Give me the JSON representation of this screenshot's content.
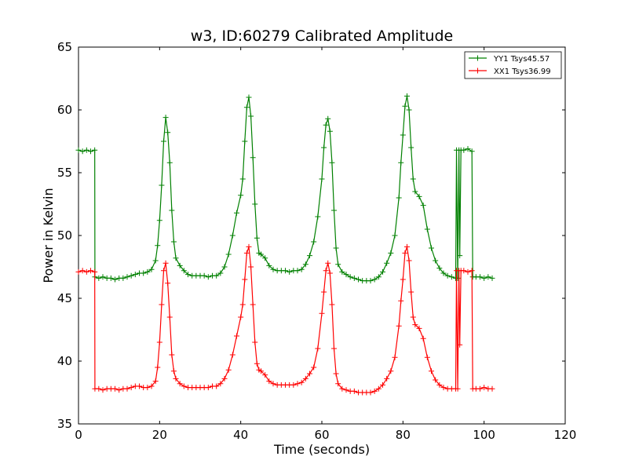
{
  "chart_data": {
    "type": "line",
    "title": "w3, ID:60279 Calibrated Amplitude",
    "xlabel": "Time (seconds)",
    "ylabel": "Power in Kelvin",
    "xlim": [
      0,
      120
    ],
    "ylim": [
      35,
      65
    ],
    "xticks": [
      0,
      20,
      40,
      60,
      80,
      100,
      120
    ],
    "yticks": [
      35,
      40,
      45,
      50,
      55,
      60,
      65
    ],
    "grid": false,
    "legend_position": "top-right",
    "marker": "+",
    "series": [
      {
        "name": "YY1 Tsys45.57",
        "color": "#008000",
        "points": [
          [
            0.0,
            56.8
          ],
          [
            1.0,
            56.7
          ],
          [
            2.0,
            56.8
          ],
          [
            3.0,
            56.7
          ],
          [
            4.0,
            56.8
          ],
          [
            4.05,
            46.7
          ],
          [
            5,
            46.6
          ],
          [
            6,
            46.7
          ],
          [
            7,
            46.6
          ],
          [
            8,
            46.6
          ],
          [
            9,
            46.5
          ],
          [
            10,
            46.6
          ],
          [
            11,
            46.6
          ],
          [
            12,
            46.7
          ],
          [
            13,
            46.8
          ],
          [
            14,
            46.9
          ],
          [
            15,
            47.0
          ],
          [
            16,
            47.0
          ],
          [
            17,
            47.1
          ],
          [
            18,
            47.3
          ],
          [
            19,
            48.0
          ],
          [
            19.5,
            49.2
          ],
          [
            20,
            51.2
          ],
          [
            20.5,
            54.0
          ],
          [
            21,
            57.5
          ],
          [
            21.5,
            59.4
          ],
          [
            22,
            58.2
          ],
          [
            22.5,
            55.8
          ],
          [
            23,
            52.0
          ],
          [
            23.5,
            49.5
          ],
          [
            24,
            48.2
          ],
          [
            25,
            47.6
          ],
          [
            26,
            47.2
          ],
          [
            27,
            46.9
          ],
          [
            28,
            46.8
          ],
          [
            29,
            46.8
          ],
          [
            30,
            46.8
          ],
          [
            31,
            46.8
          ],
          [
            32,
            46.7
          ],
          [
            33,
            46.8
          ],
          [
            34,
            46.8
          ],
          [
            35,
            47.0
          ],
          [
            36,
            47.5
          ],
          [
            37,
            48.5
          ],
          [
            38,
            50.0
          ],
          [
            39,
            51.8
          ],
          [
            40,
            53.2
          ],
          [
            40.5,
            54.5
          ],
          [
            41,
            57.5
          ],
          [
            41.5,
            60.2
          ],
          [
            42,
            61.0
          ],
          [
            42.5,
            59.5
          ],
          [
            43,
            56.2
          ],
          [
            43.5,
            52.5
          ],
          [
            44,
            49.8
          ],
          [
            44.5,
            48.6
          ],
          [
            45,
            48.5
          ],
          [
            46,
            48.2
          ],
          [
            47,
            47.6
          ],
          [
            48,
            47.3
          ],
          [
            49,
            47.2
          ],
          [
            50,
            47.2
          ],
          [
            51,
            47.2
          ],
          [
            52,
            47.1
          ],
          [
            53,
            47.2
          ],
          [
            54,
            47.2
          ],
          [
            55,
            47.3
          ],
          [
            56,
            47.7
          ],
          [
            57,
            48.4
          ],
          [
            58,
            49.5
          ],
          [
            59,
            51.5
          ],
          [
            60,
            54.5
          ],
          [
            60.5,
            57.0
          ],
          [
            61,
            58.8
          ],
          [
            61.5,
            59.3
          ],
          [
            62,
            58.3
          ],
          [
            62.5,
            55.8
          ],
          [
            63,
            52.0
          ],
          [
            63.5,
            49.0
          ],
          [
            64,
            47.7
          ],
          [
            65,
            47.1
          ],
          [
            66,
            46.9
          ],
          [
            67,
            46.7
          ],
          [
            68,
            46.6
          ],
          [
            69,
            46.5
          ],
          [
            70,
            46.4
          ],
          [
            71,
            46.4
          ],
          [
            72,
            46.4
          ],
          [
            73,
            46.5
          ],
          [
            74,
            46.7
          ],
          [
            75,
            47.1
          ],
          [
            76,
            47.8
          ],
          [
            77,
            48.6
          ],
          [
            78,
            50.0
          ],
          [
            79,
            53.0
          ],
          [
            79.5,
            55.8
          ],
          [
            80,
            58.0
          ],
          [
            80.5,
            60.3
          ],
          [
            81,
            61.1
          ],
          [
            81.5,
            60.0
          ],
          [
            82,
            57.0
          ],
          [
            82.5,
            54.5
          ],
          [
            83,
            53.5
          ],
          [
            84,
            53.1
          ],
          [
            85,
            52.4
          ],
          [
            86,
            50.5
          ],
          [
            87,
            49.0
          ],
          [
            88,
            48.0
          ],
          [
            89,
            47.4
          ],
          [
            90,
            47.0
          ],
          [
            91,
            46.8
          ],
          [
            92,
            46.7
          ],
          [
            93,
            46.6
          ],
          [
            93.2,
            56.8
          ],
          [
            93.5,
            46.6
          ],
          [
            93.8,
            56.8
          ],
          [
            94,
            48.4
          ],
          [
            94.3,
            56.8
          ],
          [
            95,
            56.8
          ],
          [
            96,
            56.9
          ],
          [
            97,
            56.7
          ],
          [
            97.2,
            46.7
          ],
          [
            98,
            46.7
          ],
          [
            99,
            46.7
          ],
          [
            100,
            46.6
          ],
          [
            101,
            46.7
          ],
          [
            102,
            46.6
          ]
        ]
      },
      {
        "name": "XX1 Tsys36.99",
        "color": "#ff0000",
        "points": [
          [
            0.0,
            47.1
          ],
          [
            1.0,
            47.2
          ],
          [
            2.0,
            47.1
          ],
          [
            3.0,
            47.2
          ],
          [
            4.0,
            47.1
          ],
          [
            4.05,
            37.8
          ],
          [
            5,
            37.8
          ],
          [
            6,
            37.7
          ],
          [
            7,
            37.8
          ],
          [
            8,
            37.8
          ],
          [
            9,
            37.8
          ],
          [
            10,
            37.7
          ],
          [
            11,
            37.8
          ],
          [
            12,
            37.8
          ],
          [
            13,
            37.9
          ],
          [
            14,
            38.0
          ],
          [
            15,
            38.0
          ],
          [
            16,
            37.9
          ],
          [
            17,
            37.9
          ],
          [
            18,
            38.0
          ],
          [
            19,
            38.4
          ],
          [
            19.5,
            39.5
          ],
          [
            20,
            41.5
          ],
          [
            20.5,
            44.5
          ],
          [
            21,
            47.2
          ],
          [
            21.5,
            47.8
          ],
          [
            22,
            46.2
          ],
          [
            22.5,
            43.5
          ],
          [
            23,
            40.5
          ],
          [
            23.5,
            39.2
          ],
          [
            24,
            38.6
          ],
          [
            25,
            38.2
          ],
          [
            26,
            38.0
          ],
          [
            27,
            37.9
          ],
          [
            28,
            37.9
          ],
          [
            29,
            37.9
          ],
          [
            30,
            37.9
          ],
          [
            31,
            37.9
          ],
          [
            32,
            37.9
          ],
          [
            33,
            38.0
          ],
          [
            34,
            38.0
          ],
          [
            35,
            38.2
          ],
          [
            36,
            38.6
          ],
          [
            37,
            39.3
          ],
          [
            38,
            40.5
          ],
          [
            39,
            42.0
          ],
          [
            40,
            43.5
          ],
          [
            40.5,
            44.5
          ],
          [
            41,
            46.5
          ],
          [
            41.5,
            48.6
          ],
          [
            42,
            49.1
          ],
          [
            42.5,
            47.5
          ],
          [
            43,
            44.5
          ],
          [
            43.5,
            41.5
          ],
          [
            44,
            39.8
          ],
          [
            44.5,
            39.3
          ],
          [
            45,
            39.2
          ],
          [
            46,
            38.9
          ],
          [
            47,
            38.4
          ],
          [
            48,
            38.2
          ],
          [
            49,
            38.1
          ],
          [
            50,
            38.1
          ],
          [
            51,
            38.1
          ],
          [
            52,
            38.1
          ],
          [
            53,
            38.1
          ],
          [
            54,
            38.2
          ],
          [
            55,
            38.3
          ],
          [
            56,
            38.6
          ],
          [
            57,
            39.0
          ],
          [
            58,
            39.5
          ],
          [
            59,
            41.0
          ],
          [
            60,
            43.8
          ],
          [
            60.5,
            45.5
          ],
          [
            61,
            47.2
          ],
          [
            61.5,
            47.8
          ],
          [
            62,
            47.0
          ],
          [
            62.5,
            44.5
          ],
          [
            63,
            41.0
          ],
          [
            63.5,
            39.0
          ],
          [
            64,
            38.2
          ],
          [
            65,
            37.8
          ],
          [
            66,
            37.7
          ],
          [
            67,
            37.6
          ],
          [
            68,
            37.6
          ],
          [
            69,
            37.5
          ],
          [
            70,
            37.5
          ],
          [
            71,
            37.5
          ],
          [
            72,
            37.5
          ],
          [
            73,
            37.6
          ],
          [
            74,
            37.8
          ],
          [
            75,
            38.1
          ],
          [
            76,
            38.6
          ],
          [
            77,
            39.2
          ],
          [
            78,
            40.3
          ],
          [
            79,
            42.8
          ],
          [
            79.5,
            44.8
          ],
          [
            80,
            46.5
          ],
          [
            80.5,
            48.6
          ],
          [
            81,
            49.1
          ],
          [
            81.5,
            48.0
          ],
          [
            82,
            45.5
          ],
          [
            82.5,
            43.5
          ],
          [
            83,
            42.9
          ],
          [
            84,
            42.6
          ],
          [
            85,
            41.8
          ],
          [
            86,
            40.3
          ],
          [
            87,
            39.2
          ],
          [
            88,
            38.5
          ],
          [
            89,
            38.1
          ],
          [
            90,
            37.9
          ],
          [
            91,
            37.8
          ],
          [
            92,
            37.8
          ],
          [
            93,
            37.8
          ],
          [
            93.2,
            47.2
          ],
          [
            93.5,
            37.8
          ],
          [
            93.8,
            47.2
          ],
          [
            94,
            41.3
          ],
          [
            94.3,
            47.2
          ],
          [
            95,
            47.2
          ],
          [
            96,
            47.1
          ],
          [
            97,
            47.2
          ],
          [
            97.2,
            37.8
          ],
          [
            98,
            37.8
          ],
          [
            99,
            37.8
          ],
          [
            100,
            37.9
          ],
          [
            101,
            37.8
          ],
          [
            102,
            37.8
          ]
        ]
      }
    ]
  }
}
